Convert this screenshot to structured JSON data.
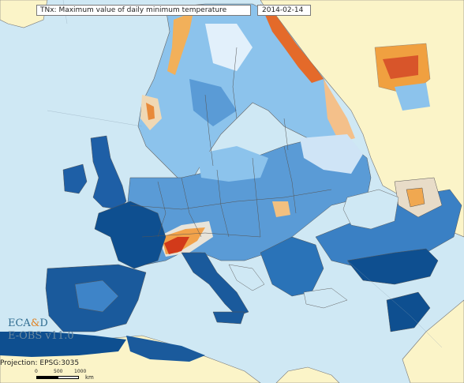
{
  "map": {
    "title": "TNx: Maximum value of daily minimum temperature",
    "date": "2014-02-14",
    "logo_prefix": "ECA",
    "logo_amp": "&",
    "logo_suffix": "D",
    "dataset": "E-OBS v11.0",
    "projection": "Projection: EPSG:3035",
    "scale": {
      "ticks": [
        "0",
        "500",
        "1000"
      ],
      "unit": "km"
    },
    "colors": {
      "sea": "#cfe8f4",
      "non_data_land": "#fbf4c8",
      "cold_deep": "#0a4a8a",
      "cold": "#2a73b8",
      "mild": "#7ab6e6",
      "cool_light": "#d8ecfa",
      "warm": "#f2a24a",
      "hot": "#d23a1a",
      "border": "#555555"
    }
  }
}
